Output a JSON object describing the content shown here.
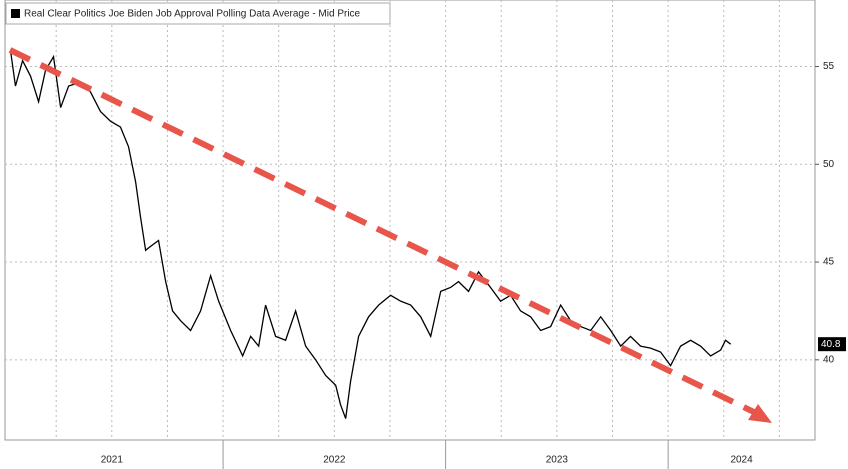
{
  "chart_data": {
    "type": "line",
    "legend_title": "Real Clear Politics Joe Biden Job Approval Polling Data Average - Mid Price",
    "legend_corner": "top-left",
    "x": [
      2021.045,
      2021.067,
      2021.099,
      2021.135,
      2021.171,
      2021.202,
      2021.238,
      2021.27,
      2021.306,
      2021.36,
      2021.404,
      2021.449,
      2021.494,
      2021.539,
      2021.575,
      2021.607,
      2021.629,
      2021.652,
      2021.674,
      2021.71,
      2021.742,
      2021.773,
      2021.809,
      2021.854,
      2021.899,
      2021.944,
      2021.98,
      2022.034,
      2022.088,
      2022.124,
      2022.16,
      2022.191,
      2022.236,
      2022.281,
      2022.326,
      2022.371,
      2022.416,
      2022.461,
      2022.506,
      2022.528,
      2022.551,
      2022.573,
      2022.609,
      2022.654,
      2022.699,
      2022.753,
      2022.798,
      2022.843,
      2022.888,
      2022.933,
      2022.978,
      2023.022,
      2023.058,
      2023.103,
      2023.148,
      2023.202,
      2023.247,
      2023.292,
      2023.337,
      2023.382,
      2023.427,
      2023.472,
      2023.517,
      2023.562,
      2023.607,
      2023.652,
      2023.697,
      2023.742,
      2023.787,
      2023.831,
      2023.876,
      2023.921,
      2023.966,
      2024.011,
      2024.056,
      2024.101,
      2024.146,
      2024.191,
      2024.236,
      2024.258,
      2024.281
    ],
    "series": [
      {
        "name": "Real Clear Politics Joe Biden Job Approval Polling Data Average - Mid Price",
        "color": "#000000",
        "values": [
          55.8,
          54.0,
          55.3,
          54.5,
          53.2,
          54.8,
          55.5,
          52.9,
          54.0,
          54.2,
          53.7,
          52.7,
          52.2,
          51.9,
          50.9,
          49.1,
          47.3,
          45.6,
          45.8,
          46.1,
          44.0,
          42.5,
          42.0,
          41.5,
          42.5,
          44.3,
          43.0,
          41.5,
          40.2,
          41.2,
          40.7,
          42.8,
          41.2,
          41.0,
          42.5,
          40.7,
          40.0,
          39.2,
          38.7,
          37.7,
          37.0,
          38.9,
          41.2,
          42.2,
          42.8,
          43.3,
          43.0,
          42.8,
          42.2,
          41.2,
          43.5,
          43.7,
          44.0,
          43.5,
          44.5,
          43.7,
          43.0,
          43.3,
          42.5,
          42.2,
          41.5,
          41.7,
          42.8,
          42.0,
          41.7,
          41.5,
          42.2,
          41.5,
          40.7,
          41.2,
          40.7,
          40.6,
          40.4,
          39.7,
          40.7,
          41.0,
          40.7,
          40.2,
          40.5,
          41.0,
          40.8
        ]
      }
    ],
    "last_value": 40.8,
    "xlim": [
      2021.02,
      2024.66
    ],
    "xticks": [
      {
        "value": 2021.5,
        "label": "2021"
      },
      {
        "value": 2022.5,
        "label": "2022"
      },
      {
        "value": 2023.5,
        "label": "2023"
      },
      {
        "value": 2024.33,
        "label": "2024"
      }
    ],
    "xgrid": [
      2021.25,
      2021.5,
      2021.75,
      2022,
      2022.25,
      2022.5,
      2022.75,
      2023,
      2023.25,
      2023.5,
      2023.75,
      2024,
      2024.25,
      2024.5
    ],
    "ylim": [
      35.9,
      58.4
    ],
    "yticks": [
      40,
      45,
      50,
      55
    ],
    "grid": true
  }
}
